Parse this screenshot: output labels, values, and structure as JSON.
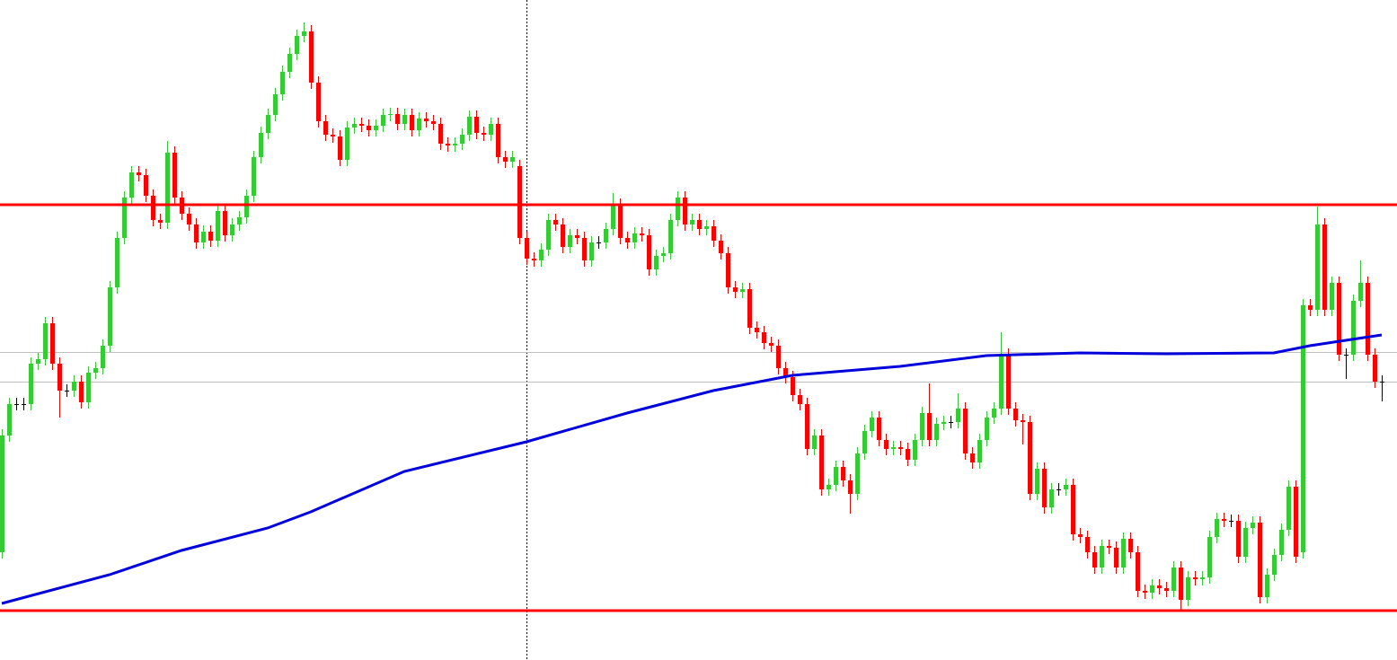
{
  "chart_data": {
    "type": "candlestick",
    "ylim": [
      0,
      735
    ],
    "up_color": "#33cc33",
    "down_color": "#ff0000",
    "doji_color": "#000000",
    "open": [
      120,
      250,
      285,
      285,
      285,
      330,
      335,
      375,
      330,
      300,
      300,
      310,
      287,
      320,
      325,
      350,
      415,
      470,
      515,
      543,
      540,
      517,
      490,
      487,
      565,
      515,
      497,
      485,
      465,
      477,
      467,
      500,
      473,
      485,
      493,
      517,
      560,
      587,
      607,
      630,
      655,
      675,
      695,
      700,
      643,
      600,
      585,
      583,
      557,
      593,
      597,
      595,
      590,
      595,
      607,
      608,
      597,
      607,
      590,
      603,
      600,
      597,
      575,
      573,
      575,
      585,
      605,
      587,
      585,
      597,
      560,
      555,
      550,
      470,
      447,
      445,
      457,
      490,
      485,
      460,
      473,
      470,
      445,
      465,
      465,
      480,
      507,
      470,
      465,
      475,
      473,
      435,
      450,
      453,
      490,
      515,
      485,
      490,
      480,
      483,
      467,
      453,
      415,
      410,
      413,
      370,
      365,
      353,
      350,
      325,
      315,
      295,
      285,
      235,
      250,
      190,
      195,
      215,
      200,
      185,
      230,
      255,
      270,
      245,
      235,
      237,
      235,
      223,
      245,
      275,
      245,
      263,
      265,
      265,
      280,
      230,
      220,
      245,
      270,
      280,
      340,
      280,
      267,
      265,
      185,
      213,
      170,
      190,
      190,
      195,
      140,
      137,
      120,
      103,
      127,
      125,
      103,
      135,
      120,
      77,
      75,
      83,
      80,
      77,
      103,
      67,
      92,
      90,
      92,
      137,
      157,
      155,
      155,
      115,
      147,
      153,
      70,
      95,
      117,
      145,
      193,
      120,
      395,
      390,
      485,
      390,
      420,
      340,
      340,
      400,
      420,
      340,
      310
    ],
    "high": [
      257,
      292,
      292,
      292,
      337,
      342,
      382,
      382,
      337,
      307,
      317,
      317,
      327,
      332,
      357,
      422,
      477,
      522,
      550,
      550,
      547,
      524,
      497,
      578,
      572,
      522,
      504,
      492,
      484,
      484,
      507,
      507,
      492,
      500,
      524,
      567,
      594,
      614,
      637,
      662,
      682,
      702,
      710,
      707,
      650,
      607,
      592,
      590,
      600,
      604,
      604,
      602,
      602,
      614,
      615,
      615,
      614,
      614,
      610,
      610,
      607,
      604,
      582,
      582,
      592,
      612,
      612,
      594,
      604,
      604,
      567,
      567,
      557,
      477,
      454,
      464,
      497,
      497,
      492,
      480,
      480,
      477,
      472,
      472,
      487,
      520,
      514,
      477,
      482,
      482,
      480,
      457,
      460,
      497,
      522,
      522,
      497,
      497,
      490,
      490,
      474,
      460,
      422,
      420,
      420,
      377,
      372,
      360,
      357,
      332,
      322,
      302,
      292,
      257,
      257,
      202,
      222,
      222,
      207,
      237,
      262,
      277,
      277,
      252,
      244,
      244,
      242,
      252,
      282,
      308,
      270,
      272,
      272,
      297,
      287,
      237,
      252,
      277,
      287,
      365,
      347,
      287,
      274,
      272,
      220,
      220,
      197,
      197,
      202,
      202,
      147,
      144,
      127,
      134,
      134,
      132,
      142,
      142,
      127,
      84,
      90,
      90,
      87,
      110,
      110,
      99,
      99,
      99,
      144,
      164,
      164,
      162,
      162,
      154,
      160,
      160,
      102,
      124,
      152,
      200,
      200,
      402,
      402,
      505,
      492,
      427,
      427,
      347,
      407,
      445,
      427,
      347,
      317
    ],
    "low": [
      113,
      243,
      278,
      278,
      278,
      323,
      328,
      323,
      270,
      293,
      293,
      280,
      280,
      313,
      318,
      343,
      408,
      463,
      508,
      533,
      510,
      483,
      480,
      480,
      508,
      490,
      478,
      458,
      458,
      460,
      460,
      466,
      466,
      478,
      486,
      510,
      553,
      580,
      600,
      623,
      648,
      668,
      688,
      636,
      593,
      578,
      576,
      550,
      550,
      586,
      588,
      583,
      583,
      588,
      600,
      590,
      590,
      583,
      583,
      593,
      590,
      568,
      566,
      566,
      568,
      578,
      580,
      578,
      578,
      553,
      548,
      548,
      463,
      440,
      438,
      438,
      450,
      478,
      453,
      453,
      463,
      438,
      438,
      458,
      458,
      473,
      463,
      458,
      458,
      466,
      428,
      428,
      443,
      446,
      483,
      478,
      478,
      473,
      473,
      460,
      446,
      408,
      403,
      403,
      363,
      358,
      346,
      343,
      318,
      308,
      288,
      278,
      228,
      228,
      183,
      183,
      188,
      193,
      163,
      178,
      223,
      248,
      238,
      228,
      228,
      228,
      216,
      216,
      238,
      238,
      238,
      256,
      258,
      258,
      223,
      213,
      213,
      238,
      263,
      273,
      273,
      260,
      240,
      178,
      178,
      163,
      163,
      183,
      183,
      133,
      130,
      113,
      96,
      96,
      118,
      96,
      96,
      113,
      70,
      68,
      68,
      73,
      70,
      70,
      55,
      60,
      83,
      83,
      85,
      130,
      148,
      148,
      108,
      108,
      140,
      63,
      63,
      88,
      110,
      138,
      108,
      113,
      383,
      383,
      383,
      383,
      333,
      313,
      333,
      393,
      333,
      303,
      288
    ],
    "close": [
      250,
      285,
      285,
      285,
      330,
      335,
      375,
      330,
      300,
      300,
      310,
      287,
      320,
      325,
      350,
      415,
      470,
      515,
      543,
      540,
      517,
      490,
      487,
      565,
      515,
      497,
      485,
      465,
      477,
      467,
      500,
      473,
      485,
      493,
      517,
      560,
      587,
      607,
      630,
      655,
      675,
      695,
      700,
      643,
      600,
      585,
      583,
      557,
      593,
      597,
      595,
      590,
      595,
      607,
      608,
      597,
      607,
      590,
      603,
      600,
      597,
      575,
      573,
      575,
      585,
      605,
      587,
      585,
      597,
      560,
      555,
      560,
      470,
      447,
      445,
      457,
      490,
      485,
      460,
      473,
      470,
      445,
      465,
      465,
      480,
      507,
      470,
      465,
      475,
      473,
      435,
      450,
      453,
      490,
      515,
      485,
      490,
      480,
      483,
      467,
      453,
      415,
      410,
      413,
      370,
      365,
      353,
      350,
      325,
      315,
      295,
      285,
      235,
      250,
      190,
      195,
      215,
      200,
      185,
      230,
      255,
      270,
      245,
      235,
      237,
      235,
      223,
      245,
      275,
      245,
      263,
      265,
      265,
      280,
      230,
      220,
      245,
      270,
      280,
      340,
      280,
      267,
      265,
      185,
      213,
      170,
      190,
      190,
      195,
      140,
      137,
      120,
      103,
      127,
      125,
      103,
      135,
      120,
      77,
      75,
      83,
      80,
      77,
      103,
      67,
      92,
      90,
      92,
      137,
      157,
      155,
      155,
      115,
      147,
      153,
      70,
      95,
      117,
      145,
      193,
      115,
      395,
      390,
      485,
      390,
      420,
      340,
      340,
      400,
      420,
      340,
      310,
      310
    ],
    "moving_average": {
      "color": "#0000dd",
      "x": [
        0,
        15,
        25,
        37,
        43,
        56,
        73,
        87,
        99,
        110,
        125,
        137,
        150,
        162,
        177,
        182,
        192
      ],
      "values": [
        63,
        95,
        122,
        147,
        165,
        210,
        243,
        275,
        300,
        317,
        327,
        339,
        342,
        341,
        342,
        350,
        362
      ]
    },
    "levels": [
      {
        "value": 507,
        "color": "#ff0000"
      },
      {
        "value": 55,
        "color": "#ff0000"
      },
      {
        "value": 343,
        "color": "#c0c0c0"
      },
      {
        "value": 310,
        "color": "#c0c0c0"
      }
    ]
  }
}
